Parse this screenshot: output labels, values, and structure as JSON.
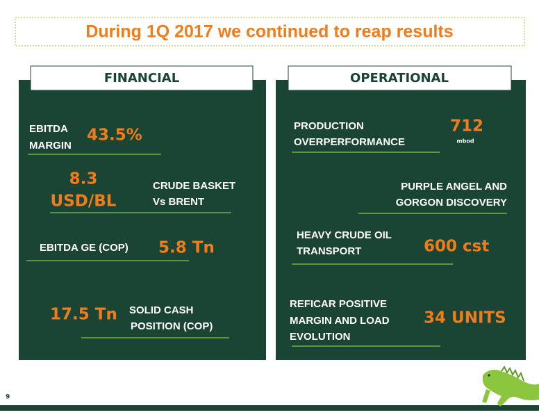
{
  "title": "During 1Q 2017 we continued to reap results",
  "page_number": "9",
  "financial": {
    "heading": "FINANCIAL",
    "items": [
      {
        "label": [
          "EBITDA",
          "MARGIN"
        ],
        "value": [
          "43.5%"
        ]
      },
      {
        "label": [
          "CRUDE BASKET",
          "Vs BRENT"
        ],
        "value": [
          "8.3",
          "USD/BL"
        ]
      },
      {
        "label": [
          "EBITDA GE (COP)"
        ],
        "value": [
          "5.8 Tn"
        ]
      },
      {
        "label": [
          "SOLID CASH",
          "POSITION (COP)"
        ],
        "value": [
          "17.5 Tn"
        ]
      }
    ]
  },
  "operational": {
    "heading": "OPERATIONAL",
    "items": [
      {
        "label": [
          "PRODUCTION",
          "OVERPERFORMANCE"
        ],
        "value": [
          "712"
        ],
        "unit": "mbod"
      },
      {
        "label": [
          "PURPLE ANGEL AND",
          "GORGON DISCOVERY"
        ]
      },
      {
        "label": [
          "HEAVY CRUDE OIL",
          "TRANSPORT"
        ],
        "value": [
          "600 cst"
        ]
      },
      {
        "label": [
          "REFICAR POSITIVE",
          "MARGIN AND LOAD",
          "EVOLUTION"
        ],
        "value": [
          "34 UNITS"
        ]
      }
    ]
  }
}
